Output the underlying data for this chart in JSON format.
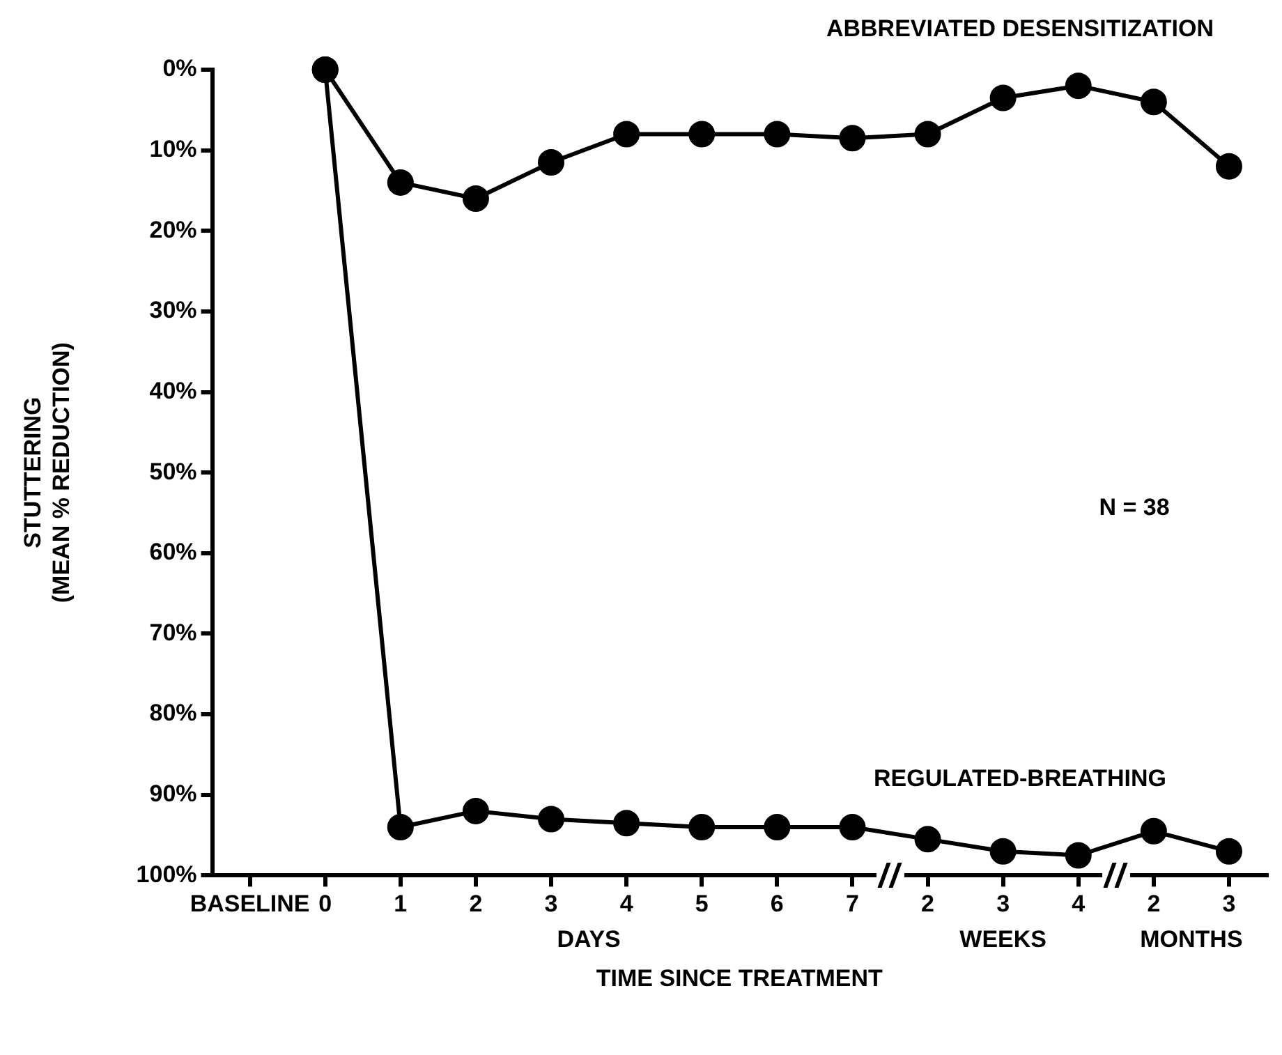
{
  "chart_data": {
    "type": "line",
    "xlabel": "TIME SINCE TREATMENT",
    "ylabel": "STUTTERING\n(MEAN % REDUCTION)",
    "categories": [
      "BASELINE",
      "0",
      "1",
      "2",
      "3",
      "4",
      "5",
      "6",
      "7",
      "2",
      "3",
      "4",
      "2",
      "3"
    ],
    "series": [
      {
        "name": "ABBREVIATED DESENSITIZATION",
        "color": "#000000",
        "values": [
          null,
          0,
          14,
          16,
          11.5,
          8,
          8,
          8,
          8.5,
          8,
          3.5,
          2,
          4,
          12
        ]
      },
      {
        "name": "REGULATED-BREATHING",
        "color": "#000000",
        "values": [
          null,
          0,
          94,
          92,
          93,
          93.5,
          94,
          94,
          94,
          95.5,
          97,
          97.5,
          94.5,
          97
        ]
      }
    ],
    "ylim": [
      100,
      0
    ],
    "yticks": [
      {
        "value": 0,
        "label": "0%"
      },
      {
        "value": 10,
        "label": "10%"
      },
      {
        "value": 20,
        "label": "20%"
      },
      {
        "value": 30,
        "label": "30%"
      },
      {
        "value": 40,
        "label": "40%"
      },
      {
        "value": 50,
        "label": "50%"
      },
      {
        "value": 60,
        "label": "60%"
      },
      {
        "value": 70,
        "label": "70%"
      },
      {
        "value": 80,
        "label": "80%"
      },
      {
        "value": 90,
        "label": "90%"
      },
      {
        "value": 100,
        "label": "100%"
      }
    ],
    "annotations": [
      "DAYS",
      "WEEKS",
      "MONTHS",
      "N = 38"
    ],
    "grid": false,
    "legend": false,
    "marker": "circle",
    "line_style": "solid"
  }
}
